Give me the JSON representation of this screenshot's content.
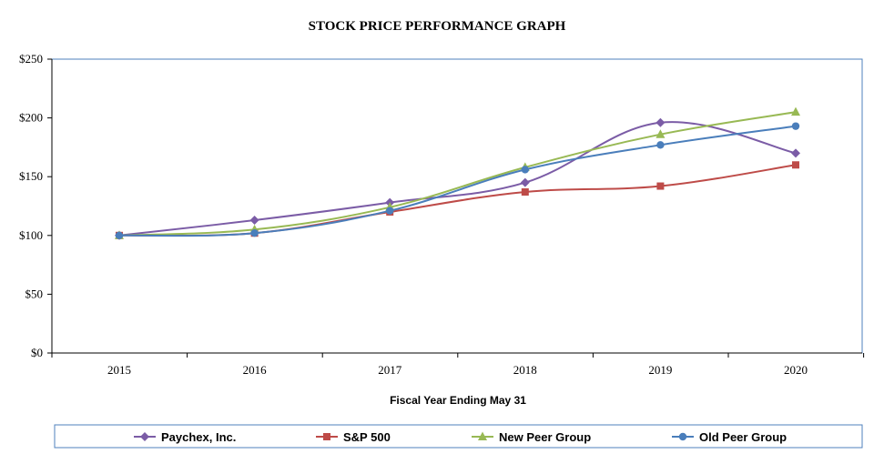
{
  "chart_data": {
    "type": "line",
    "title": "STOCK PRICE PERFORMANCE GRAPH",
    "xlabel": "Fiscal Year Ending May 31",
    "ylabel": "",
    "categories": [
      "2015",
      "2016",
      "2017",
      "2018",
      "2019",
      "2020"
    ],
    "y_ticks": [
      "$0",
      "$50",
      "$100",
      "$150",
      "$200",
      "$250"
    ],
    "ylim": [
      0,
      250
    ],
    "y_step": 50,
    "legend_position": "bottom",
    "series": [
      {
        "name": "Paychex, Inc.",
        "marker": "diamond",
        "color": "#7B5CA6",
        "values": [
          100,
          113,
          128,
          145,
          196,
          170
        ]
      },
      {
        "name": "S&P 500",
        "marker": "square",
        "color": "#BE4B48",
        "values": [
          100,
          102,
          120,
          137,
          142,
          160
        ]
      },
      {
        "name": "New Peer Group",
        "marker": "triangle",
        "color": "#98B954",
        "values": [
          100,
          105,
          124,
          158,
          186,
          205
        ]
      },
      {
        "name": "Old Peer Group",
        "marker": "circle",
        "color": "#4A7EBB",
        "values": [
          100,
          102,
          121,
          156,
          177,
          193
        ]
      }
    ]
  }
}
